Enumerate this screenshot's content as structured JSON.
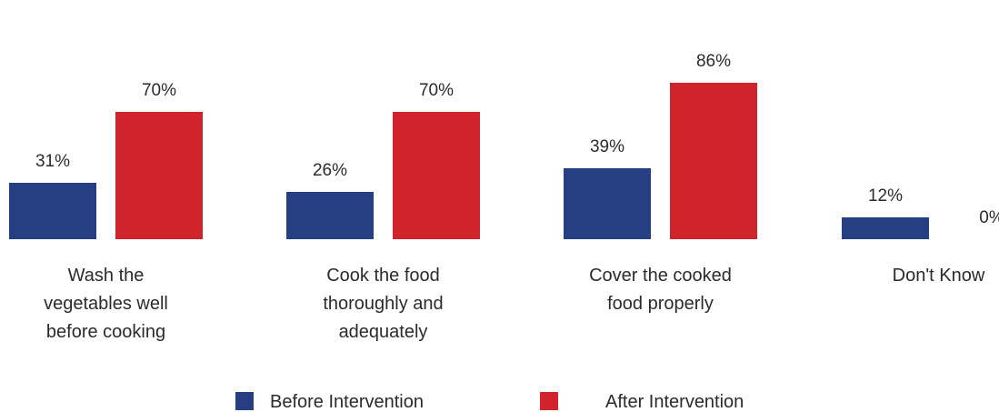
{
  "chart_data": {
    "type": "bar",
    "title": "",
    "xlabel": "",
    "ylabel": "",
    "ylim": [
      0,
      100
    ],
    "grid": false,
    "legend_position": "bottom",
    "categories": [
      [
        "Wash the",
        "vegetables well",
        "before cooking"
      ],
      [
        "Cook the food",
        "thoroughly and",
        "adequately"
      ],
      [
        "Cover the cooked",
        "food properly"
      ],
      [
        "Don't Know"
      ]
    ],
    "series": [
      {
        "name": "Before Intervention",
        "color": "#263f82",
        "values": [
          31,
          26,
          39,
          12
        ],
        "labels": [
          "31%",
          "26%",
          "39%",
          "12%"
        ]
      },
      {
        "name": "After Intervention",
        "color": "#d0232c",
        "values": [
          70,
          70,
          86,
          0
        ],
        "labels": [
          "70%",
          "70%",
          "86%",
          "0%"
        ]
      }
    ]
  }
}
